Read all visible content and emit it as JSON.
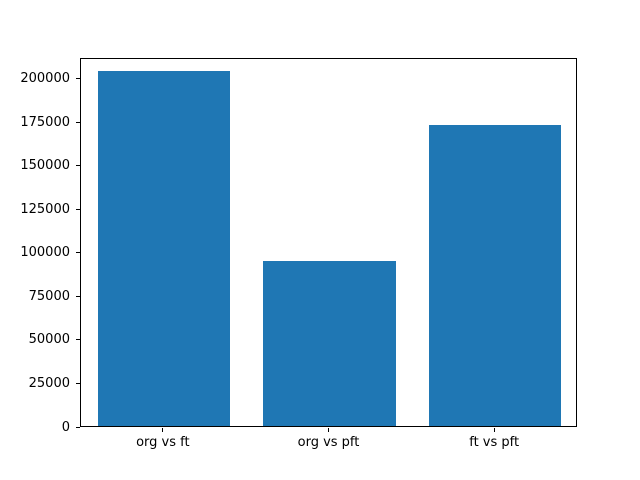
{
  "chart_data": {
    "type": "bar",
    "title": "",
    "xlabel": "",
    "ylabel": "",
    "categories": [
      "org vs ft",
      "org vs pft",
      "ft vs pft"
    ],
    "values": [
      204000,
      95000,
      173000
    ],
    "ylim": [
      0,
      212000
    ],
    "yticks": [
      0,
      25000,
      50000,
      75000,
      100000,
      125000,
      150000,
      175000,
      200000
    ],
    "bar_color": "#1f77b4",
    "axis_color": "#000000",
    "grid": false,
    "legend": false,
    "bar_width_fraction": 0.8
  }
}
